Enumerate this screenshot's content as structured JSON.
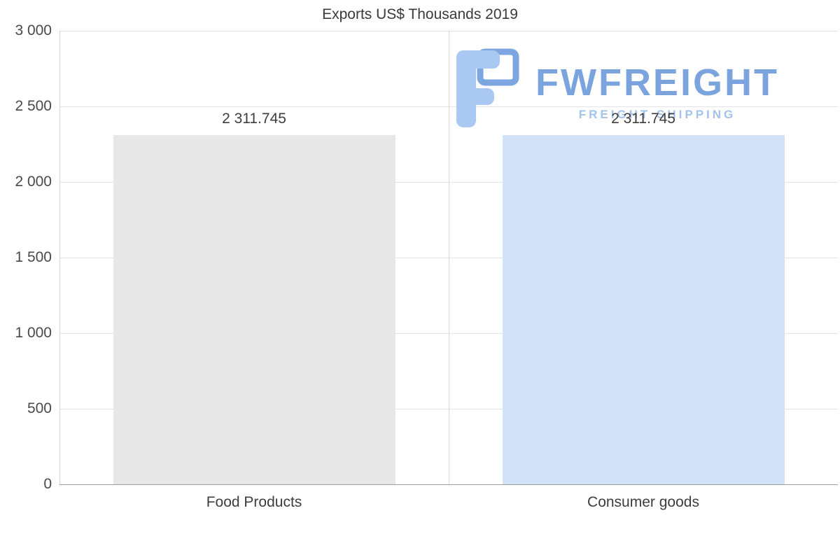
{
  "chart_data": {
    "type": "bar",
    "title": "Exports US$ Thousands 2019",
    "categories": [
      "Food Products",
      "Consumer goods"
    ],
    "values": [
      2311.745,
      2311.745
    ],
    "value_labels": [
      "2 311.745",
      "2 311.745"
    ],
    "bar_colors": [
      "#e7e7e7",
      "#d2e3f8"
    ],
    "xlabel": "",
    "ylabel": "",
    "ylim": [
      0,
      3000
    ],
    "ytick_labels": [
      "3 000",
      "2 500",
      "2 000",
      "1 500",
      "1 000",
      "500",
      "0"
    ],
    "grid": true,
    "legend": "none"
  },
  "watermark": {
    "brand": "FWFREIGHT",
    "tagline": "FREIGHT SHIPPING",
    "brand_color": "#7ba4de",
    "tagline_color": "#a3c2ec",
    "icon": "fwfreight-f-logo-icon"
  }
}
